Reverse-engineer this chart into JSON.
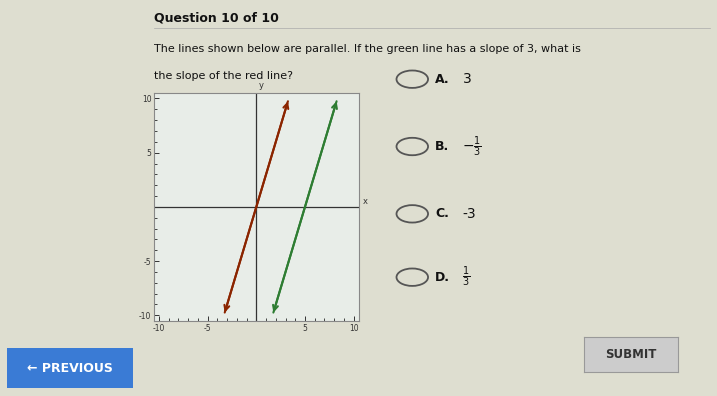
{
  "title": "Question 10 of 10",
  "question_line1": "The lines shown below are parallel. If the green line has a slope of 3, what is",
  "question_line2": "the slope of the red line?",
  "graph": {
    "xlim": [
      -10,
      10
    ],
    "ylim": [
      -10,
      10
    ],
    "major_ticks": [
      -10,
      -5,
      5,
      10
    ],
    "red_line": {
      "slope": 3,
      "intercept": 0,
      "color": "#8B2500",
      "x_start": -3.33,
      "x_end": 3.33
    },
    "green_line": {
      "slope": 3,
      "intercept": -15,
      "color": "#2E7D32",
      "x_start": 1.67,
      "x_end": 8.33
    }
  },
  "options": [
    {
      "label": "A.",
      "value": "3",
      "math": false
    },
    {
      "label": "B.",
      "value": "-\\frac{1}{3}",
      "math": true
    },
    {
      "label": "C.",
      "value": "-3",
      "math": false
    },
    {
      "label": "D.",
      "value": "\\frac{1}{3}",
      "math": true
    }
  ],
  "bg_color": "#deded0",
  "graph_bg_color": "#e8ede8",
  "graph_border_color": "#888888",
  "axis_color": "#333333",
  "tick_label_color": "#333333",
  "button_submit_bg": "#cccccc",
  "button_submit_text": "#333333",
  "button_prev_bg": "#3a7bd5",
  "button_prev_text": "#ffffff",
  "title_color": "#111111",
  "question_color": "#111111",
  "option_circle_color": "#555555",
  "option_text_color": "#111111"
}
